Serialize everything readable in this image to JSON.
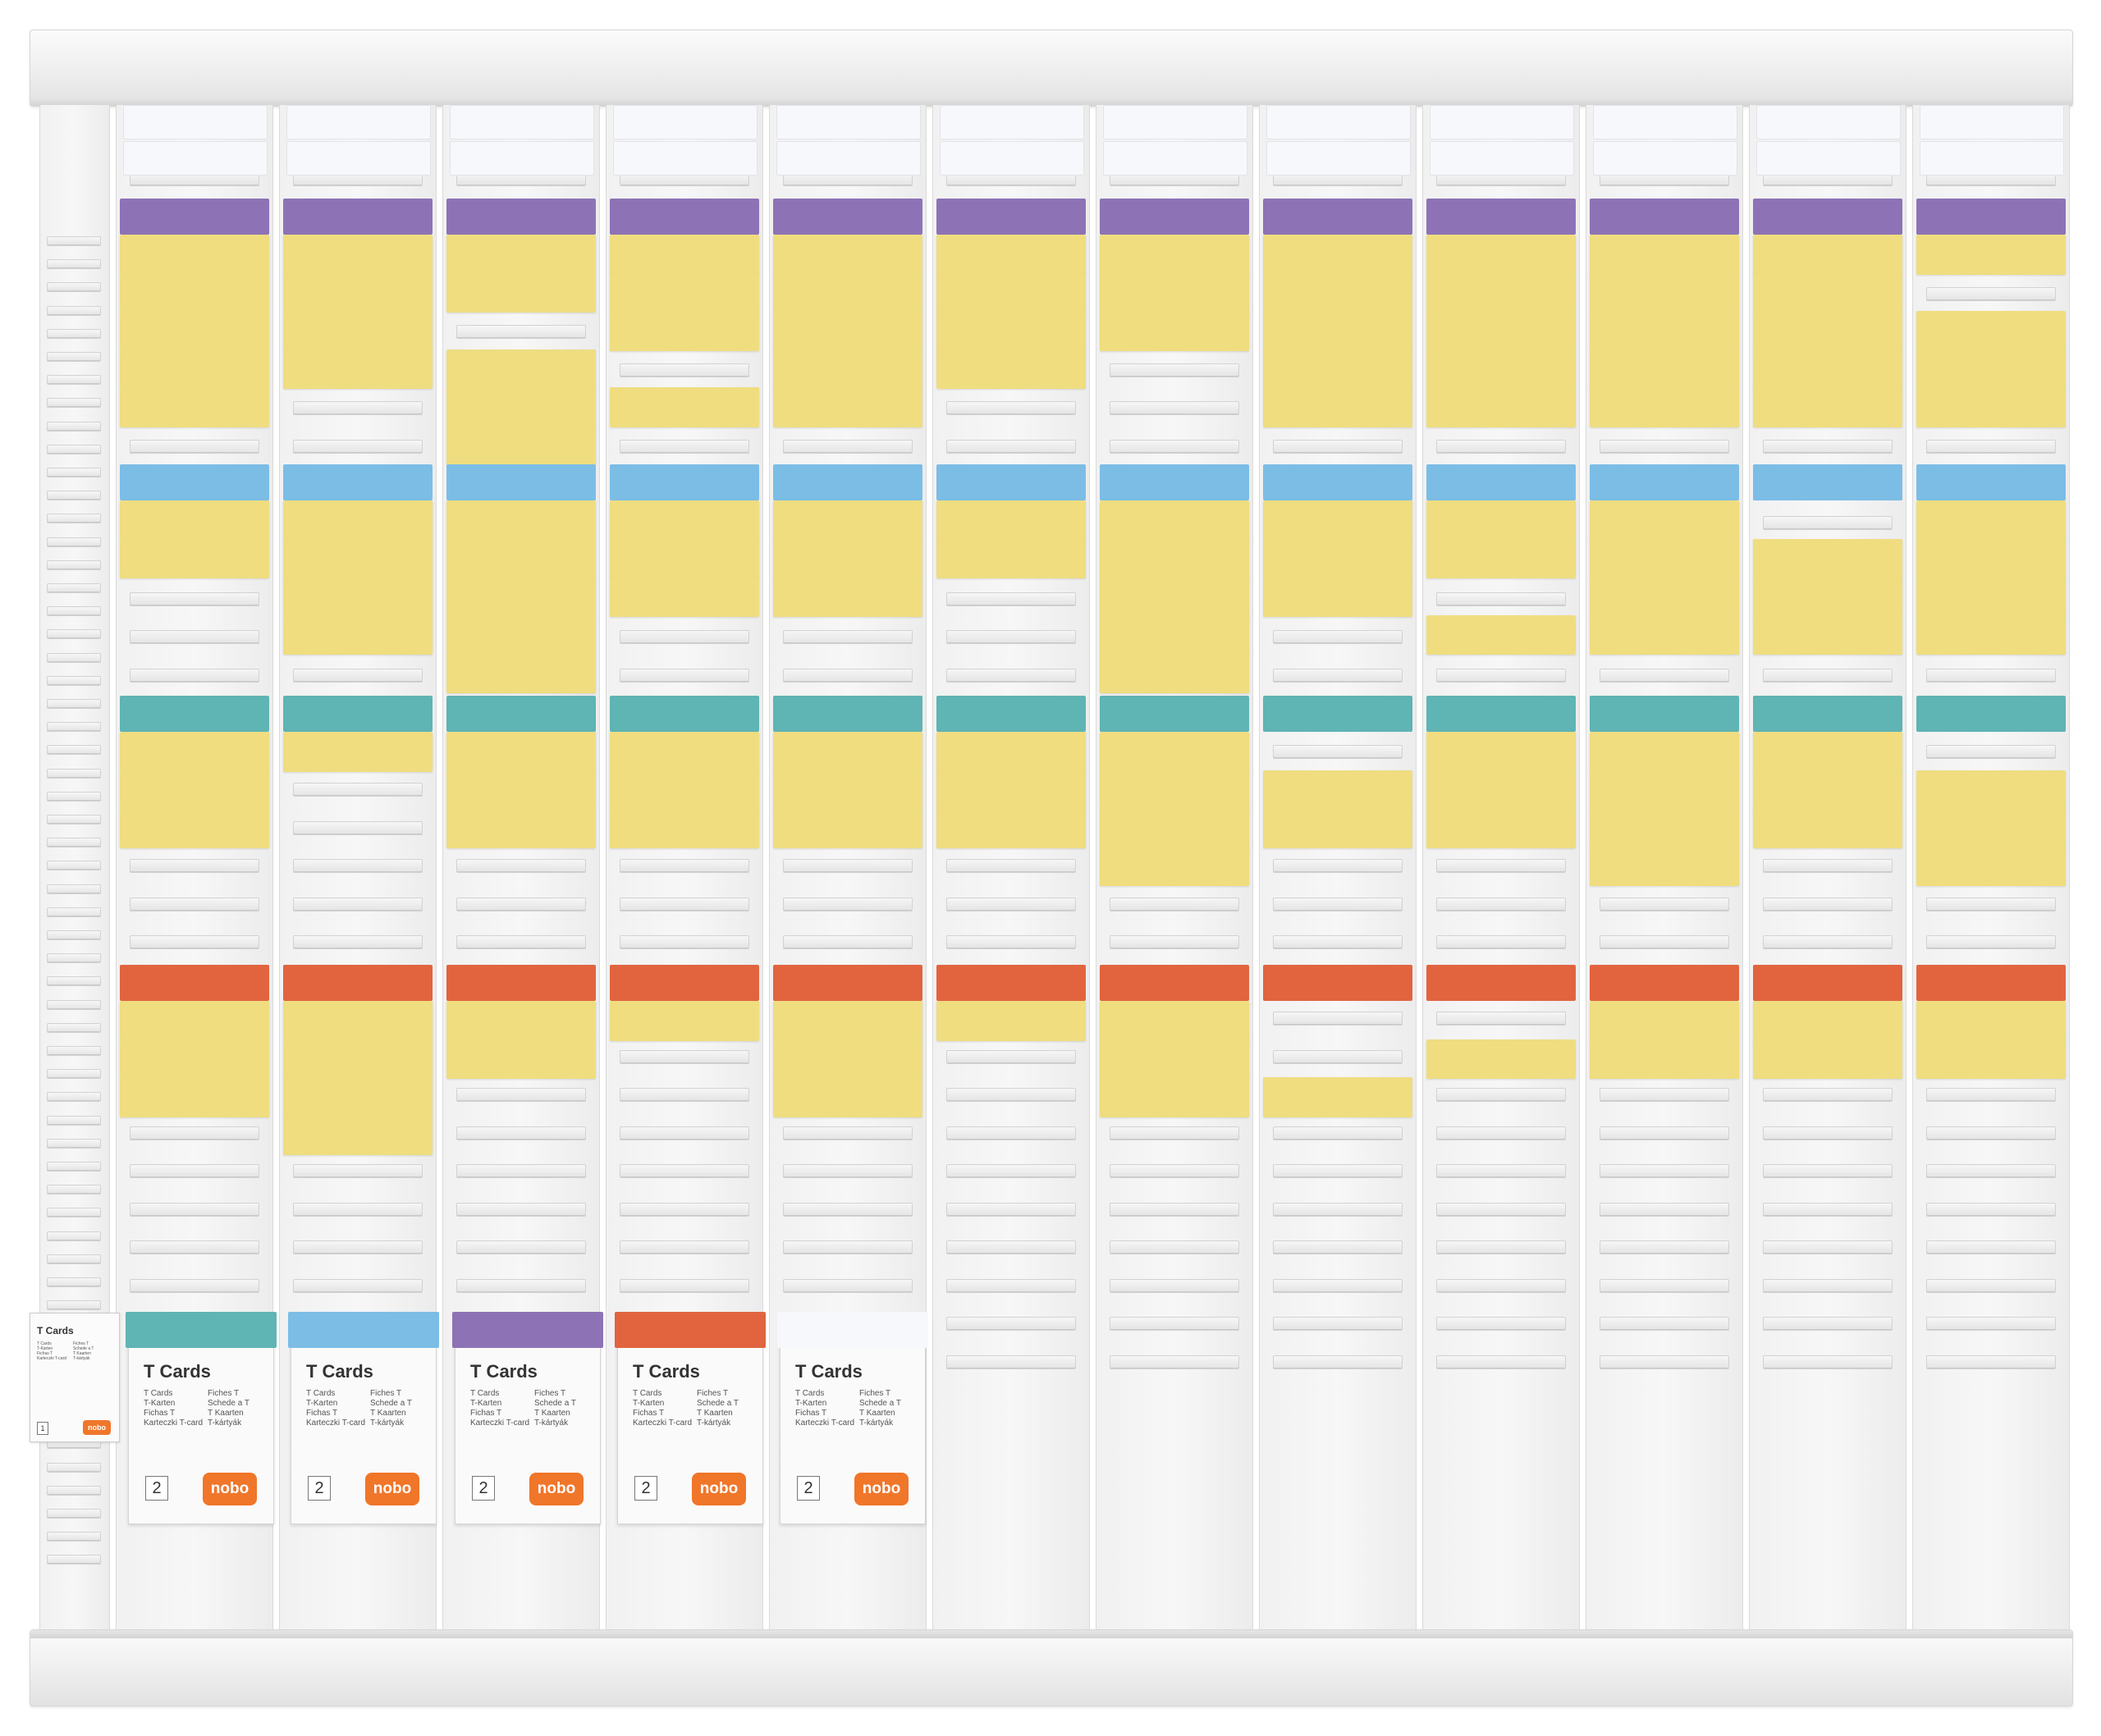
{
  "board": {
    "columns": 12,
    "colors": {
      "yellow": "#efdd80",
      "white": "#f6f8fb",
      "purple": "#8d73b6",
      "blue": "#7cbde6",
      "teal": "#5fb4b4",
      "red": "#e1643f"
    },
    "header_tabs": [
      "white",
      "white",
      "purple"
    ],
    "section_colors": [
      "purple",
      "blue",
      "teal",
      "red"
    ],
    "cards": [
      [
        [
          1,
          1,
          1,
          1,
          1,
          0,
          0
        ],
        [
          1,
          1,
          0,
          0,
          0,
          0
        ],
        [
          1,
          1,
          1,
          0,
          0,
          0,
          0
        ],
        [
          1,
          1,
          1,
          0,
          0,
          0,
          0,
          0,
          0,
          0,
          0,
          0,
          0,
          0,
          0,
          0
        ]
      ],
      [
        [
          1,
          1,
          1,
          1,
          0,
          0,
          0
        ],
        [
          1,
          1,
          1,
          1,
          0,
          0
        ],
        [
          1,
          0,
          0,
          0,
          0,
          0,
          0
        ],
        [
          1,
          1,
          1,
          1,
          0,
          0,
          0,
          0,
          0,
          0,
          0,
          0,
          0,
          0,
          0,
          0
        ]
      ],
      [
        [
          1,
          1,
          0,
          1,
          1,
          1,
          0
        ],
        [
          1,
          1,
          1,
          1,
          1,
          0
        ],
        [
          1,
          1,
          1,
          0,
          0,
          0,
          0
        ],
        [
          1,
          1,
          0,
          0,
          0,
          0,
          0,
          0,
          0,
          0,
          0,
          0,
          0,
          0,
          0,
          0
        ]
      ],
      [
        [
          1,
          1,
          1,
          0,
          1,
          0,
          0
        ],
        [
          1,
          1,
          1,
          0,
          0,
          0
        ],
        [
          1,
          1,
          1,
          0,
          0,
          0,
          0
        ],
        [
          1,
          0,
          0,
          0,
          0,
          0,
          0,
          0,
          0,
          0,
          0,
          0,
          0,
          0,
          0,
          0
        ]
      ],
      [
        [
          1,
          1,
          1,
          1,
          1,
          0,
          0
        ],
        [
          1,
          1,
          1,
          0,
          0,
          0
        ],
        [
          1,
          1,
          1,
          0,
          0,
          0,
          0
        ],
        [
          1,
          1,
          1,
          0,
          0,
          0,
          0,
          0,
          0,
          0,
          0,
          0,
          0,
          0,
          0,
          0
        ]
      ],
      [
        [
          1,
          1,
          1,
          1,
          0,
          0,
          0
        ],
        [
          1,
          1,
          0,
          0,
          0,
          0
        ],
        [
          1,
          1,
          1,
          0,
          0,
          0,
          0
        ],
        [
          1,
          0,
          0,
          0,
          0,
          0,
          0,
          0,
          0,
          0,
          0,
          0,
          0,
          0,
          0,
          0
        ]
      ],
      [
        [
          1,
          1,
          1,
          0,
          0,
          0,
          0
        ],
        [
          1,
          1,
          1,
          1,
          1,
          0
        ],
        [
          1,
          1,
          1,
          1,
          0,
          0,
          0
        ],
        [
          1,
          1,
          1,
          0,
          0,
          0,
          0,
          0,
          0,
          0,
          0,
          0,
          0,
          0,
          0,
          0
        ]
      ],
      [
        [
          1,
          1,
          1,
          1,
          1,
          0,
          0
        ],
        [
          1,
          1,
          1,
          0,
          0,
          0
        ],
        [
          0,
          1,
          1,
          0,
          0,
          0,
          0
        ],
        [
          0,
          0,
          1,
          0,
          0,
          0,
          0,
          0,
          0,
          0,
          0,
          0,
          0,
          0,
          0,
          0
        ]
      ],
      [
        [
          1,
          1,
          1,
          1,
          1,
          0,
          0
        ],
        [
          1,
          1,
          0,
          1,
          0,
          0
        ],
        [
          1,
          1,
          1,
          0,
          0,
          0,
          0
        ],
        [
          0,
          1,
          0,
          0,
          0,
          0,
          0,
          0,
          0,
          0,
          0,
          0,
          0,
          0,
          0,
          0
        ]
      ],
      [
        [
          1,
          1,
          1,
          1,
          1,
          0,
          0
        ],
        [
          1,
          1,
          1,
          1,
          0,
          0
        ],
        [
          1,
          1,
          1,
          1,
          0,
          0,
          0
        ],
        [
          1,
          1,
          0,
          0,
          0,
          0,
          0,
          0,
          0,
          0,
          0,
          0,
          0,
          0,
          0,
          0
        ]
      ],
      [
        [
          1,
          1,
          1,
          1,
          1,
          0,
          0
        ],
        [
          0,
          1,
          1,
          1,
          0,
          0
        ],
        [
          1,
          1,
          1,
          0,
          0,
          0,
          0
        ],
        [
          1,
          1,
          0,
          0,
          0,
          0,
          0,
          0,
          0,
          0,
          0,
          0,
          0,
          0,
          0,
          0
        ]
      ],
      [
        [
          1,
          0,
          1,
          1,
          1,
          0,
          0
        ],
        [
          1,
          1,
          1,
          1,
          0,
          0
        ],
        [
          0,
          1,
          1,
          1,
          0,
          0,
          0
        ],
        [
          1,
          1,
          0,
          0,
          0,
          0,
          0,
          0,
          0,
          0,
          0,
          0,
          0,
          0,
          0,
          0
        ]
      ]
    ]
  },
  "packs": [
    {
      "color": "teal",
      "title": "T Cards",
      "lang_left": "T Cards\nT-Karten\nFichas T\nKarteczki T-card",
      "lang_right": "Fiches T\nSchede a T\nT Kaarten\nT-kártyák",
      "number": "2",
      "logo": "nobo"
    },
    {
      "color": "blue",
      "title": "T Cards",
      "lang_left": "T Cards\nT-Karten\nFichas T\nKarteczki T-card",
      "lang_right": "Fiches T\nSchede a T\nT Kaarten\nT-kártyák",
      "number": "2",
      "logo": "nobo"
    },
    {
      "color": "purple",
      "title": "T Cards",
      "lang_left": "T Cards\nT-Karten\nFichas T\nKarteczki T-card",
      "lang_right": "Fiches T\nSchede a T\nT Kaarten\nT-kártyák",
      "number": "2",
      "logo": "nobo"
    },
    {
      "color": "red",
      "title": "T Cards",
      "lang_left": "T Cards\nT-Karten\nFichas T\nKarteczki T-card",
      "lang_right": "Fiches T\nSchede a T\nT Kaarten\nT-kártyák",
      "number": "2",
      "logo": "nobo"
    },
    {
      "color": "white",
      "title": "T Cards",
      "lang_left": "T Cards\nT-Karten\nFichas T\nKarteczki T-card",
      "lang_right": "Fiches T\nSchede a T\nT Kaarten\nT-kártyák",
      "number": "2",
      "logo": "nobo"
    }
  ],
  "mini_pack": {
    "title": "T Cards",
    "lang_left": "T Cards\nT-Karten\nFichas T\nKarteczki T-card",
    "lang_right": "Fiches T\nSchede a T\nT Kaarten\nT-kártyák",
    "number": "1",
    "logo": "nobo"
  }
}
